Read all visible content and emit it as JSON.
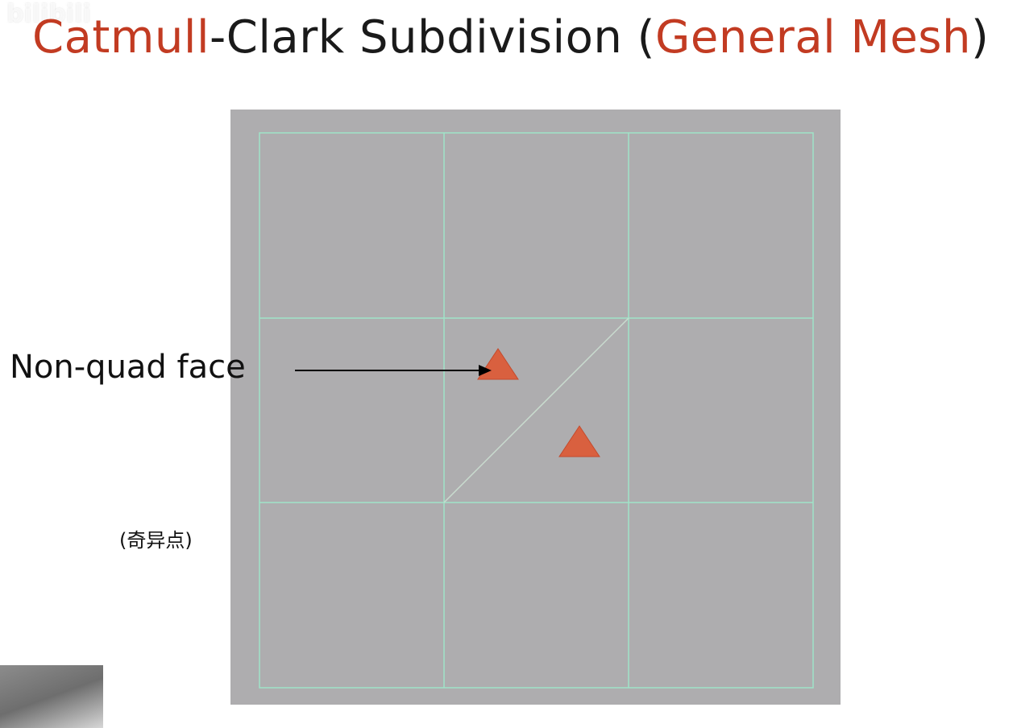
{
  "watermark": "bilibili",
  "title": {
    "part1": "Catmull",
    "part2": "-Clark Subdivision (",
    "part3": "General Mesh",
    "part4": ")"
  },
  "annotation": {
    "label": "Non-quad face",
    "sublabel": "(奇异点)"
  },
  "colors": {
    "accent": "#c23b22",
    "mesh_bg": "#aeadaf",
    "grid_line": "#9fe3c8",
    "triangle_marker": "#d9603f"
  }
}
